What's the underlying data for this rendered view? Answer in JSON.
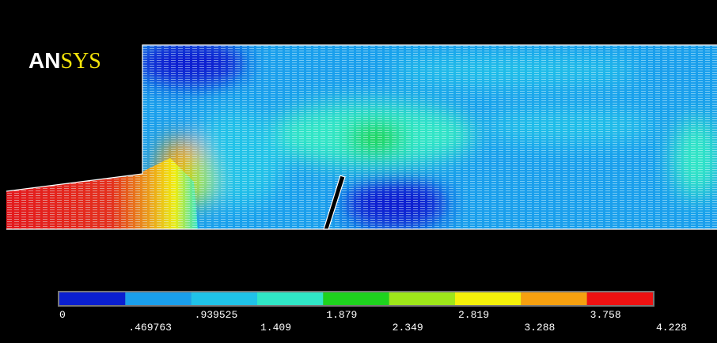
{
  "logo": {
    "mark": "AN",
    "name": "SYS"
  },
  "legend": {
    "colors": [
      "#0a1fd0",
      "#1a9fec",
      "#20c2e8",
      "#30e6c6",
      "#1ed21e",
      "#9ee61a",
      "#f4f00a",
      "#f6a010",
      "#ee1212"
    ],
    "labels": [
      "0",
      ".469763",
      ".939525",
      "1.409",
      "1.879",
      "2.349",
      "2.819",
      "3.288",
      "3.758",
      "4.228"
    ]
  }
}
